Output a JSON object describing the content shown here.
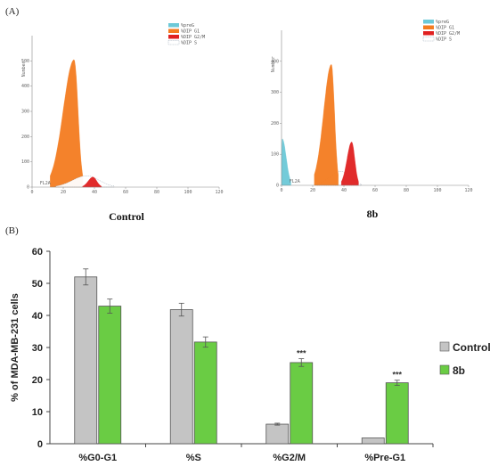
{
  "panel_a_label": "(A)",
  "panel_b_label": "(B)",
  "colors": {
    "preG": "#6cc9d8",
    "g1": "#f47c20",
    "g2m": "#e02020",
    "s": "#ffffff",
    "control_bar": "#c4c4c4",
    "treated_bar": "#6acc44",
    "hist_axis": "#888888"
  },
  "chart_data": [
    {
      "type": "area",
      "caption": "Control",
      "xlabel": "FL2A",
      "ylabel": "Number",
      "xlim": [
        0,
        120
      ],
      "ylim": [
        0,
        600
      ],
      "x_ticks": [
        0,
        20,
        40,
        60,
        80,
        100,
        120
      ],
      "y_ticks": [
        0,
        100,
        200,
        300,
        400,
        500
      ],
      "x_tick_labels": [
        "0",
        "20",
        "40",
        "60",
        "80",
        "100",
        "120"
      ],
      "y_tick_labels": [
        "0",
        "100",
        "200",
        "300",
        "400",
        "500"
      ],
      "legend": [
        "%preG",
        "%DIP G1",
        "%DIP G2/M",
        "%DIP S"
      ],
      "peaks": [
        {
          "phase": "DIP G1",
          "color": "g1",
          "center": 27,
          "height": 505,
          "left_width": 7,
          "right_width": 2.5
        },
        {
          "phase": "DIP S",
          "color": "s",
          "center": 35,
          "height": 45,
          "left_width": 9,
          "right_width": 8
        },
        {
          "phase": "DIP G2/M",
          "color": "g2m",
          "center": 39,
          "height": 40,
          "left_width": 3,
          "right_width": 2.5
        }
      ]
    },
    {
      "type": "area",
      "caption": "8b",
      "xlabel": "FL2A",
      "ylabel": "Number",
      "xlim": [
        0,
        120
      ],
      "ylim": [
        0,
        500
      ],
      "x_ticks": [
        0,
        20,
        40,
        60,
        80,
        100,
        120
      ],
      "y_ticks": [
        0,
        100,
        200,
        300,
        400
      ],
      "x_tick_labels": [
        "0",
        "20",
        "40",
        "60",
        "80",
        "100",
        "120"
      ],
      "y_tick_labels": [
        "0",
        "100",
        "200",
        "300",
        "400"
      ],
      "legend": [
        "%preG",
        "%DIP G1",
        "%DIP G2/M",
        "%DIP S"
      ],
      "peaks": [
        {
          "phase": "preG",
          "color": "preG",
          "center": 0.5,
          "height": 150,
          "left_width": 0.5,
          "right_width": 2.5
        },
        {
          "phase": "DIP S",
          "color": "s",
          "center": 38,
          "height": 45,
          "left_width": 7,
          "right_width": 6
        },
        {
          "phase": "DIP G1",
          "color": "g1",
          "center": 32,
          "height": 390,
          "left_width": 5,
          "right_width": 2
        },
        {
          "phase": "DIP G2/M",
          "color": "g2m",
          "center": 45,
          "height": 140,
          "left_width": 3,
          "right_width": 2
        }
      ]
    },
    {
      "type": "bar",
      "title": "",
      "xlabel": "",
      "ylabel": "% of MDA-MB-231 cells",
      "ylim": [
        0,
        60
      ],
      "y_ticks": [
        0,
        10,
        20,
        30,
        40,
        50,
        60
      ],
      "y_tick_labels": [
        "0",
        "10",
        "20",
        "30",
        "40",
        "50",
        "60"
      ],
      "categories": [
        "%G0-G1",
        "%S",
        "%G2/M",
        "%Pre-G1"
      ],
      "series": [
        {
          "name": "Control",
          "color": "control_bar",
          "values": [
            52,
            41.8,
            6.1,
            1.8
          ],
          "errors": [
            2.5,
            2.0,
            0.3,
            0
          ]
        },
        {
          "name": "8b",
          "color": "treated_bar",
          "values": [
            42.9,
            31.7,
            25.3,
            19
          ],
          "errors": [
            2.2,
            1.6,
            1.2,
            0.8
          ]
        }
      ],
      "annotations": [
        {
          "category": "%G2/M",
          "series": "8b",
          "text": "***"
        },
        {
          "category": "%Pre-G1",
          "series": "8b",
          "text": "***"
        }
      ],
      "legend_position": "right"
    }
  ]
}
